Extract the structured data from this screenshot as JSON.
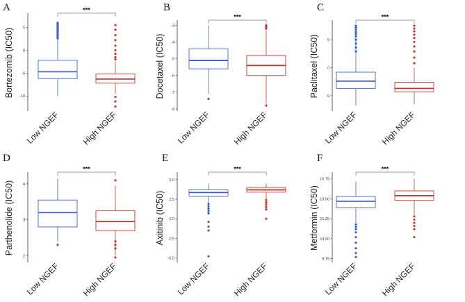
{
  "figure": {
    "colors": {
      "low": "#3a5fcd",
      "high": "#c0392b",
      "axis": "#333333",
      "bracket": "#777777"
    }
  },
  "chart_data": [
    {
      "panel": "A",
      "type": "box",
      "ylabel": "Bortezomib (IC50)",
      "categories": [
        "Low NGEF",
        "High NGEF"
      ],
      "ylim": [
        -13,
        7.5
      ],
      "yticks": [
        5,
        0,
        -5,
        -10
      ],
      "ytick_labels": [
        "5",
        "0",
        "-5",
        "-10"
      ],
      "significance": "***",
      "boxes": [
        {
          "name": "Low NGEF",
          "whisker_low": -10,
          "q1": -6.2,
          "median": -4.7,
          "q3": -2.2,
          "whisker_high": 5.5,
          "outliers": [
            5.8,
            6.0,
            5.6,
            5.3,
            5.0,
            4.7,
            4.4,
            4.1,
            3.8,
            3.5,
            3.2,
            2.9,
            2.6
          ]
        },
        {
          "name": "High NGEF",
          "whisker_low": -9.5,
          "q1": -7.2,
          "median": -6.3,
          "q3": -5.2,
          "whisker_high": -2.5,
          "outliers": [
            5.5,
            4.5,
            3.3,
            2.2,
            1.0,
            0.0,
            -0.8,
            -1.5,
            -2.0,
            -10.2,
            -11.2,
            -12.3
          ]
        }
      ]
    },
    {
      "panel": "B",
      "type": "box",
      "ylabel": "Docetaxel (IC50)",
      "categories": [
        "Low NGEF",
        "High NGEF"
      ],
      "ylim": [
        -8.05,
        -2.85
      ],
      "yticks": [
        -3,
        -4,
        -5,
        -6,
        -7,
        -8
      ],
      "ytick_labels": [
        "-3",
        "-4",
        "-5",
        "-6",
        "-7",
        "-8"
      ],
      "significance": "***",
      "boxes": [
        {
          "name": "Low NGEF",
          "whisker_low": -7.1,
          "q1": -5.6,
          "median": -5.1,
          "q3": -4.4,
          "whisker_high": -3.0,
          "outliers": [
            -7.4
          ]
        },
        {
          "name": "High NGEF",
          "whisker_low": -7.7,
          "q1": -6.0,
          "median": -5.4,
          "q3": -4.8,
          "whisker_high": -3.3,
          "outliers": [
            -3.0,
            -3.1,
            -3.2,
            -7.8
          ]
        }
      ]
    },
    {
      "panel": "C",
      "type": "box",
      "ylabel": "Paclitaxel (IC50)",
      "categories": [
        "Low NGEF",
        "High NGEF"
      ],
      "ylim": [
        -7.5,
        8
      ],
      "yticks": [
        5,
        0,
        -5
      ],
      "ytick_labels": [
        "5",
        "0",
        "-5"
      ],
      "significance": "***",
      "boxes": [
        {
          "name": "Low NGEF",
          "whisker_low": -6.8,
          "q1": -3.7,
          "median": -2.4,
          "q3": -0.8,
          "whisker_high": 7.2,
          "outliers": [
            7.5,
            7.2,
            6.8,
            6.4,
            6.0,
            5.6,
            5.0,
            4.3,
            3.6,
            2.9
          ]
        },
        {
          "name": "High NGEF",
          "whisker_low": -6.5,
          "q1": -4.3,
          "median": -3.7,
          "q3": -2.6,
          "whisker_high": 0.0,
          "outliers": [
            7.5,
            7.0,
            6.5,
            5.9,
            5.3,
            4.6,
            3.8,
            2.9,
            1.8,
            0.8
          ]
        }
      ]
    },
    {
      "panel": "D",
      "type": "box",
      "ylabel": "Parthenolide (IC50)",
      "categories": [
        "Low NGEF",
        "High NGEF"
      ],
      "ylim": [
        1.85,
        4.25
      ],
      "yticks": [
        4,
        3,
        2
      ],
      "ytick_labels": [
        "4",
        "3",
        "2"
      ],
      "significance": "***",
      "boxes": [
        {
          "name": "Low NGEF",
          "whisker_low": 2.4,
          "q1": 2.8,
          "median": 3.2,
          "q3": 3.55,
          "whisker_high": 4.15,
          "outliers": [
            2.3
          ]
        },
        {
          "name": "High NGEF",
          "whisker_low": 2.0,
          "q1": 2.7,
          "median": 2.95,
          "q3": 3.25,
          "whisker_high": 3.95,
          "outliers": [
            4.1,
            2.4,
            2.3,
            2.2,
            1.95
          ]
        }
      ]
    },
    {
      "panel": "E",
      "type": "box",
      "ylabel": "Axitinib (IC50)",
      "categories": [
        "Low NGEF",
        "High NGEF"
      ],
      "ylim": [
        -5.4,
        5.6
      ],
      "yticks": [
        5.0,
        2.5,
        0.0,
        -2.5,
        -5.0
      ],
      "ytick_labels": [
        "5.0",
        "2.5",
        "0.0",
        "-2.5",
        "-5.0"
      ],
      "significance": "***",
      "boxes": [
        {
          "name": "Low NGEF",
          "whisker_low": 2.0,
          "q1": 2.9,
          "median": 3.35,
          "q3": 3.7,
          "whisker_high": 4.5,
          "outliers": [
            1.9,
            1.6,
            1.3,
            1.0,
            0.7,
            -0.4,
            -1.0,
            -1.5,
            -4.8
          ]
        },
        {
          "name": "High NGEF",
          "whisker_low": 2.5,
          "q1": 3.4,
          "median": 3.7,
          "q3": 4.0,
          "whisker_high": 4.5,
          "outliers": [
            2.4,
            2.1,
            1.8,
            1.5,
            1.2,
            0.0
          ]
        }
      ]
    },
    {
      "panel": "F",
      "type": "box",
      "ylabel": "Metformin (IC50)",
      "categories": [
        "Low NGEF",
        "High NGEF"
      ],
      "ylim": [
        9.72,
        10.8
      ],
      "yticks": [
        10.75,
        10.5,
        10.25,
        10.0,
        9.75
      ],
      "ytick_labels": [
        "10.75",
        "10.50",
        "10.25",
        "10.00",
        "9.75"
      ],
      "significance": "***",
      "boxes": [
        {
          "name": "Low NGEF",
          "whisker_low": 10.2,
          "q1": 10.39,
          "median": 10.47,
          "q3": 10.53,
          "whisker_high": 10.72,
          "outliers": [
            10.18,
            10.15,
            10.12,
            10.08,
            10.02,
            9.95,
            9.88,
            9.82,
            9.77
          ]
        },
        {
          "name": "High NGEF",
          "whisker_low": 10.3,
          "q1": 10.48,
          "median": 10.54,
          "q3": 10.6,
          "whisker_high": 10.75,
          "outliers": [
            10.28,
            10.24,
            10.2,
            10.16,
            10.12,
            10.02
          ]
        }
      ]
    }
  ]
}
